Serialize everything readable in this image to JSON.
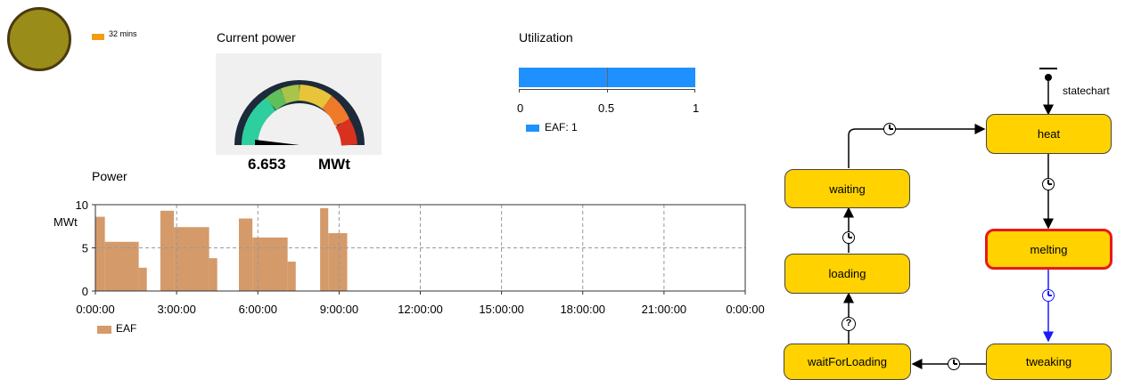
{
  "indicator": {
    "legend_label": "32 mins",
    "circle_color": "#9a8c19",
    "legend_color": "#f39c12"
  },
  "gauge": {
    "title": "Current power",
    "value": "6.653",
    "unit": "MWt",
    "value_fraction": 0.05
  },
  "utilization": {
    "title": "Utilization",
    "value": 1,
    "ticks": [
      "0",
      "0.5",
      "1"
    ],
    "legend_label": "EAF: 1",
    "bar_color": "#1e90ff"
  },
  "chart_data": {
    "type": "bar",
    "title": "Power",
    "xlabel": "",
    "ylabel": "MWt",
    "ylim": [
      0,
      10
    ],
    "yticks": [
      "0",
      "5",
      "10"
    ],
    "xticks": [
      "0:00:00",
      "3:00:00",
      "6:00:00",
      "9:00:00",
      "12:00:00",
      "15:00:00",
      "18:00:00",
      "21:00:00",
      "0:00:00"
    ],
    "xlim_hours": [
      0,
      24
    ],
    "series": [
      {
        "name": "EAF",
        "color": "#d49a6a",
        "bars": [
          {
            "start": 0.0,
            "end": 0.35,
            "value": 8.6
          },
          {
            "start": 0.35,
            "end": 1.6,
            "value": 5.7
          },
          {
            "start": 1.6,
            "end": 1.9,
            "value": 2.7
          },
          {
            "start": 2.4,
            "end": 2.9,
            "value": 9.3
          },
          {
            "start": 2.9,
            "end": 4.2,
            "value": 7.4
          },
          {
            "start": 4.2,
            "end": 4.5,
            "value": 3.8
          },
          {
            "start": 5.3,
            "end": 5.8,
            "value": 8.4
          },
          {
            "start": 5.8,
            "end": 7.1,
            "value": 6.2
          },
          {
            "start": 7.1,
            "end": 7.4,
            "value": 3.4
          },
          {
            "start": 8.3,
            "end": 8.6,
            "value": 9.6
          },
          {
            "start": 8.6,
            "end": 9.3,
            "value": 6.7
          }
        ]
      }
    ]
  },
  "statechart": {
    "label": "statechart",
    "states": [
      "heat",
      "melting",
      "tweaking",
      "waitForLoading",
      "loading",
      "waiting"
    ],
    "active_state": "melting",
    "transition_icons": [
      "clock-icon",
      "clock-icon",
      "clock-icon",
      "clock-icon",
      "question-icon",
      "clock-icon"
    ]
  }
}
